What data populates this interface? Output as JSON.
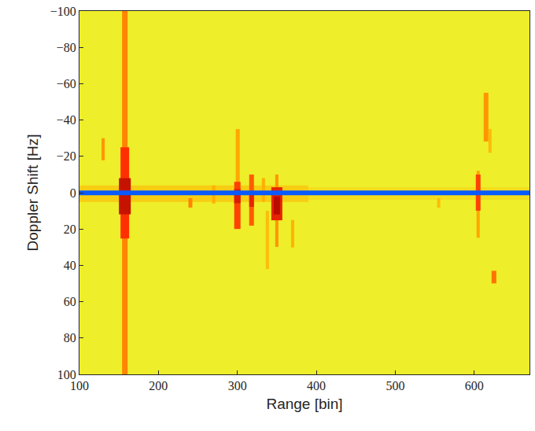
{
  "chart_data": {
    "type": "heatmap",
    "x_label": "Range [bin]",
    "y_label": "Doppler Shift [Hz]",
    "xlim": [
      100,
      670
    ],
    "ylim": [
      100,
      -100
    ],
    "xticks": [
      100,
      200,
      300,
      400,
      500,
      600
    ],
    "yticks": [
      -100,
      -80,
      -60,
      -40,
      -20,
      0,
      20,
      40,
      60,
      80,
      100
    ],
    "zlim": [
      0,
      100
    ],
    "tick_labels": true,
    "cells": [
      {
        "x": [
          100,
          670
        ],
        "y": [
          -100,
          100
        ],
        "z": 50
      },
      {
        "x": [
          100,
          390
        ],
        "y": [
          -4,
          5
        ],
        "z": 58
      },
      {
        "x": [
          390,
          670
        ],
        "y": [
          -3,
          4
        ],
        "z": 54
      },
      {
        "x": [
          154,
          161
        ],
        "y": [
          -100,
          100
        ],
        "z": 70
      },
      {
        "x": [
          152,
          163
        ],
        "y": [
          -25,
          25
        ],
        "z": 80
      },
      {
        "x": [
          150,
          165
        ],
        "y": [
          -8,
          12
        ],
        "z": 92
      },
      {
        "x": [
          128,
          132
        ],
        "y": [
          -30,
          -18
        ],
        "z": 68
      },
      {
        "x": [
          238,
          243
        ],
        "y": [
          3,
          8
        ],
        "z": 70
      },
      {
        "x": [
          268,
          272
        ],
        "y": [
          -4,
          6
        ],
        "z": 65
      },
      {
        "x": [
          298,
          303
        ],
        "y": [
          -35,
          -5
        ],
        "z": 66
      },
      {
        "x": [
          296,
          304
        ],
        "y": [
          -6,
          20
        ],
        "z": 78
      },
      {
        "x": [
          296,
          304
        ],
        "y": [
          -2,
          6
        ],
        "z": 88
      },
      {
        "x": [
          315,
          321
        ],
        "y": [
          -10,
          18
        ],
        "z": 75
      },
      {
        "x": [
          315,
          321
        ],
        "y": [
          0,
          8
        ],
        "z": 85
      },
      {
        "x": [
          331,
          335
        ],
        "y": [
          -8,
          5
        ],
        "z": 65
      },
      {
        "x": [
          336,
          340
        ],
        "y": [
          10,
          42
        ],
        "z": 62
      },
      {
        "x": [
          348,
          352
        ],
        "y": [
          -10,
          30
        ],
        "z": 68
      },
      {
        "x": [
          343,
          357
        ],
        "y": [
          -3,
          15
        ],
        "z": 85
      },
      {
        "x": [
          346,
          354
        ],
        "y": [
          2,
          12
        ],
        "z": 95
      },
      {
        "x": [
          368,
          372
        ],
        "y": [
          15,
          30
        ],
        "z": 64
      },
      {
        "x": [
          553,
          557
        ],
        "y": [
          3,
          8
        ],
        "z": 62
      },
      {
        "x": [
          603,
          607
        ],
        "y": [
          -12,
          25
        ],
        "z": 66
      },
      {
        "x": [
          602,
          608
        ],
        "y": [
          -10,
          10
        ],
        "z": 78
      },
      {
        "x": [
          612,
          618
        ],
        "y": [
          -55,
          -28
        ],
        "z": 68
      },
      {
        "x": [
          618,
          622
        ],
        "y": [
          -35,
          -22
        ],
        "z": 62
      },
      {
        "x": [
          622,
          628
        ],
        "y": [
          43,
          50
        ],
        "z": 72
      },
      {
        "x": [
          100,
          670
        ],
        "y": [
          -1.2,
          1.2
        ],
        "z": 5
      }
    ]
  }
}
